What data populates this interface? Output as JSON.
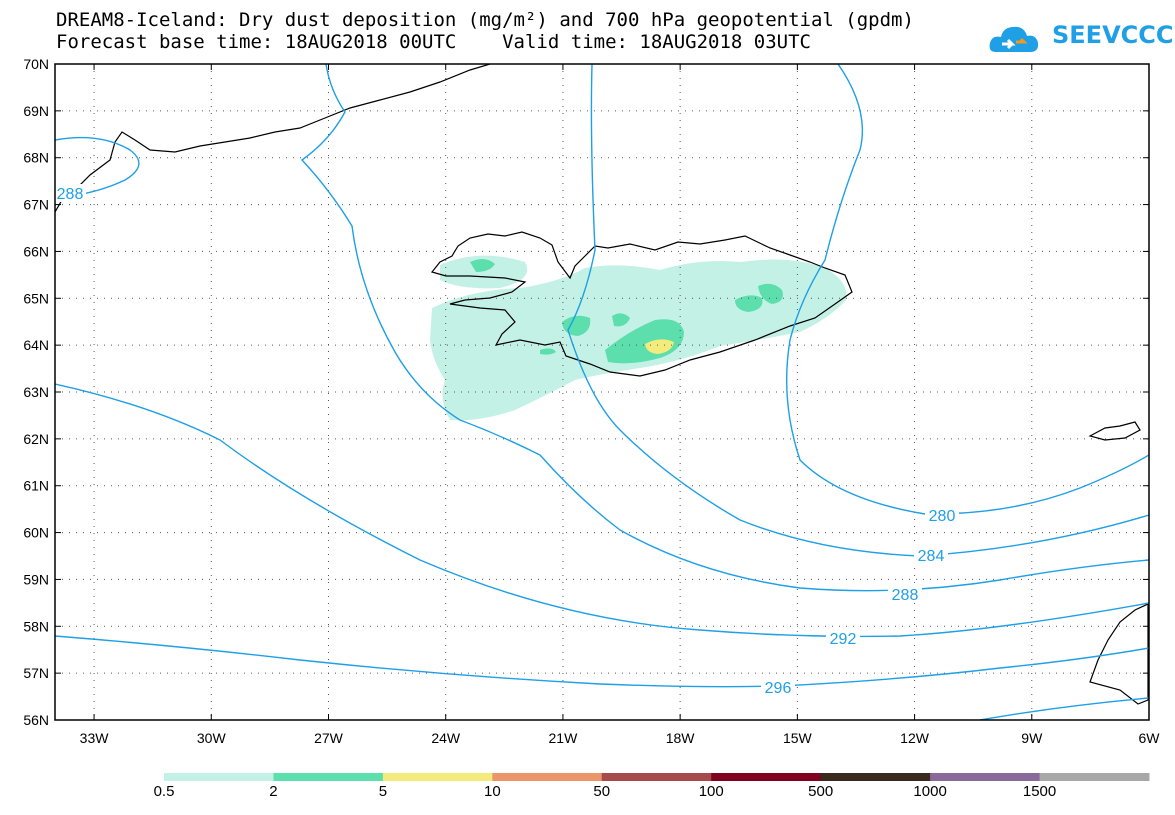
{
  "title": {
    "line1": "DREAM8-Iceland: Dry dust deposition (mg/m²) and 700 hPa geopotential (gpdm)",
    "line2": "Forecast base time: 18AUG2018 00UTC    Valid time: 18AUG2018 03UTC"
  },
  "logo": {
    "text": "SEEVCCC",
    "color": "#1e9fe6"
  },
  "map": {
    "lon_range": [
      -34,
      -6
    ],
    "lat_range": [
      56,
      70
    ],
    "lat_ticks": [
      "56N",
      "57N",
      "58N",
      "59N",
      "60N",
      "61N",
      "62N",
      "63N",
      "64N",
      "65N",
      "66N",
      "67N",
      "68N",
      "69N",
      "70N"
    ],
    "lon_ticks": [
      "33W",
      "30W",
      "27W",
      "24W",
      "21W",
      "18W",
      "15W",
      "12W",
      "9W",
      "6W"
    ],
    "contour_color": "#1e9fe6",
    "contour_labels": [
      "280",
      "284",
      "288",
      "292",
      "296",
      "288"
    ]
  },
  "colorbar": {
    "colors": [
      "#c4f1e6",
      "#5cdfac",
      "#f3ec7c",
      "#ea956a",
      "#a64b4b",
      "#800020",
      "#3a2a1e",
      "#8a6a98",
      "#a8a8a8"
    ],
    "labels": [
      "0.5",
      "2",
      "5",
      "10",
      "50",
      "100",
      "500",
      "1000",
      "1500"
    ]
  }
}
